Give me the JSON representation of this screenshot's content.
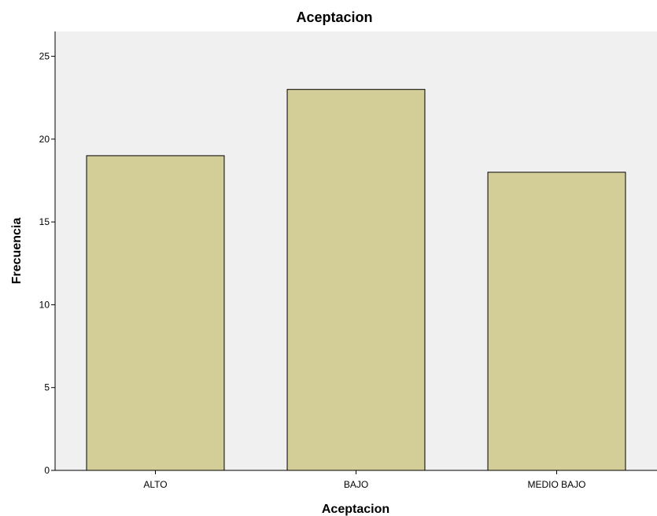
{
  "chart_data": {
    "type": "bar",
    "title": "Aceptacion",
    "xlabel": "Aceptacion",
    "ylabel": "Frecuencia",
    "categories": [
      "ALTO",
      "BAJO",
      "MEDIO BAJO"
    ],
    "values": [
      19,
      23,
      18
    ],
    "yticks": [
      0,
      5,
      10,
      15,
      20,
      25
    ],
    "ylim": [
      0,
      26.5
    ],
    "grid": false,
    "legend": "none",
    "colors": {
      "plot_background": "#f0f0f0",
      "bar_fill": "#d3ce97",
      "bar_stroke": "#000000",
      "axis": "#000000"
    }
  }
}
